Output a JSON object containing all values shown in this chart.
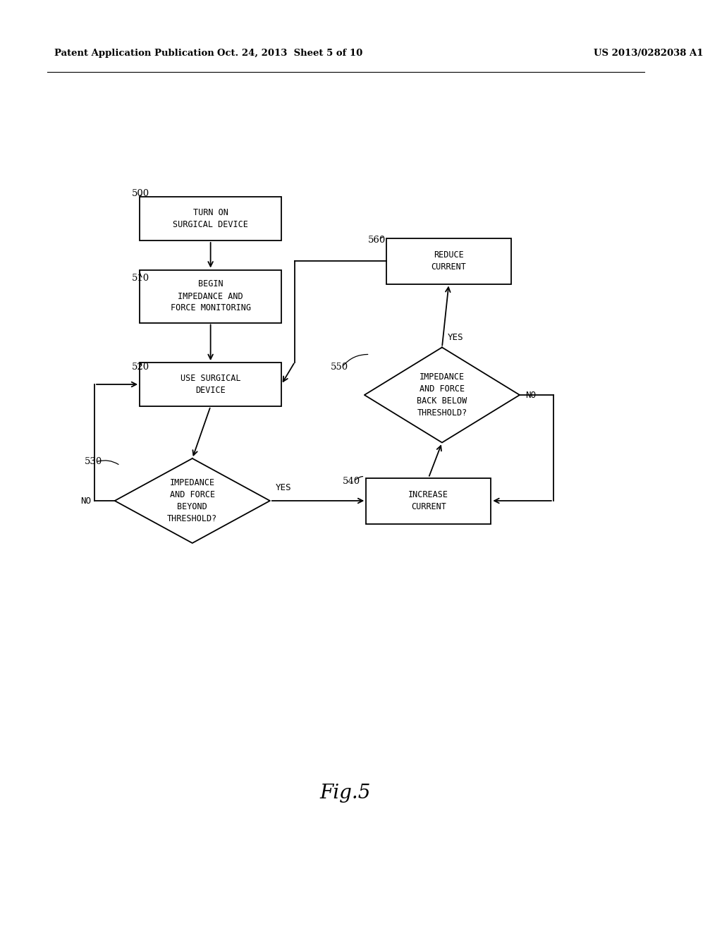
{
  "background_color": "#ffffff",
  "header_left": "Patent Application Publication",
  "header_center": "Oct. 24, 2013  Sheet 5 of 10",
  "header_right": "US 2013/0282038 A1",
  "fig_label": "Fig.5",
  "font_size_node": 8.5,
  "font_size_header": 9.5,
  "font_size_ref": 9.5,
  "font_size_fig": 20
}
